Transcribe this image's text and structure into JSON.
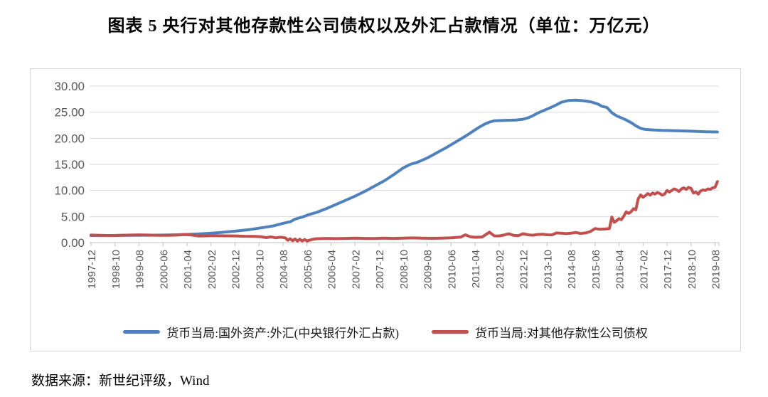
{
  "title": "图表 5  央行对其他存款性公司债权以及外汇占款情况（单位：万亿元）",
  "source": "数据来源：新世纪评级，Wind",
  "colors": {
    "blue_series": "#4f81bd",
    "red_series": "#c0504d",
    "grid": "#d9d9d9",
    "axis_line": "#bfbfbf",
    "axis_text": "#595959",
    "chart_border": "#d6d6d6"
  },
  "chart_data": {
    "type": "line",
    "title": "图表 5  央行对其他存款性公司债权以及外汇占款情况（单位：万亿元）",
    "unit": "万亿元",
    "ylim": [
      0,
      30
    ],
    "grid": "horizontal",
    "legend_position": "bottom",
    "y_tick_labels": [
      "30.00",
      "25.00",
      "20.00",
      "15.00",
      "10.00",
      "5.00",
      "0.00"
    ],
    "x_tick_labels": [
      "1997-12",
      "1998-10",
      "1999-08",
      "2000-06",
      "2001-04",
      "2002-02",
      "2002-12",
      "2003-10",
      "2004-08",
      "2005-06",
      "2006-04",
      "2007-02",
      "2007-12",
      "2008-10",
      "2009-08",
      "2010-06",
      "2011-04",
      "2012-02",
      "2012-12",
      "2013-10",
      "2014-08",
      "2015-06",
      "2016-04",
      "2017-02",
      "2017-12",
      "2018-10",
      "2019-08"
    ],
    "x_months_per_tick": 10,
    "x_month_range": [
      0,
      261
    ],
    "series": [
      {
        "name": "货币当局:国外资产:外汇(中央银行外汇占款)",
        "color": "#4f81bd",
        "points": [
          [
            0,
            1.35
          ],
          [
            6,
            1.35
          ],
          [
            12,
            1.38
          ],
          [
            18,
            1.4
          ],
          [
            24,
            1.42
          ],
          [
            30,
            1.45
          ],
          [
            36,
            1.5
          ],
          [
            42,
            1.6
          ],
          [
            48,
            1.75
          ],
          [
            54,
            1.95
          ],
          [
            60,
            2.2
          ],
          [
            66,
            2.5
          ],
          [
            72,
            2.9
          ],
          [
            76,
            3.2
          ],
          [
            80,
            3.7
          ],
          [
            83,
            4.0
          ],
          [
            85,
            4.5
          ],
          [
            88,
            4.9
          ],
          [
            91,
            5.4
          ],
          [
            94,
            5.8
          ],
          [
            98,
            6.5
          ],
          [
            102,
            7.3
          ],
          [
            106,
            8.1
          ],
          [
            110,
            8.9
          ],
          [
            114,
            9.8
          ],
          [
            118,
            10.8
          ],
          [
            122,
            11.8
          ],
          [
            126,
            13.0
          ],
          [
            130,
            14.3
          ],
          [
            133,
            15.0
          ],
          [
            136,
            15.4
          ],
          [
            140,
            16.2
          ],
          [
            144,
            17.2
          ],
          [
            148,
            18.2
          ],
          [
            152,
            19.3
          ],
          [
            156,
            20.4
          ],
          [
            160,
            21.6
          ],
          [
            162,
            22.2
          ],
          [
            164,
            22.7
          ],
          [
            166,
            23.1
          ],
          [
            168,
            23.35
          ],
          [
            171,
            23.4
          ],
          [
            174,
            23.45
          ],
          [
            177,
            23.5
          ],
          [
            180,
            23.65
          ],
          [
            182,
            23.9
          ],
          [
            184,
            24.3
          ],
          [
            186,
            24.8
          ],
          [
            188,
            25.2
          ],
          [
            190,
            25.6
          ],
          [
            193,
            26.2
          ],
          [
            196,
            26.9
          ],
          [
            199,
            27.25
          ],
          [
            202,
            27.3
          ],
          [
            205,
            27.2
          ],
          [
            208,
            27.0
          ],
          [
            211,
            26.6
          ],
          [
            213,
            26.1
          ],
          [
            215,
            25.9
          ],
          [
            217,
            24.9
          ],
          [
            219,
            24.3
          ],
          [
            221,
            23.9
          ],
          [
            223,
            23.5
          ],
          [
            225,
            23.0
          ],
          [
            227,
            22.4
          ],
          [
            229,
            21.9
          ],
          [
            231,
            21.7
          ],
          [
            234,
            21.6
          ],
          [
            238,
            21.5
          ],
          [
            244,
            21.45
          ],
          [
            250,
            21.35
          ],
          [
            256,
            21.25
          ],
          [
            261,
            21.2
          ]
        ]
      },
      {
        "name": "货币当局:对其他存款性公司债权",
        "color": "#c0504d",
        "points": [
          [
            0,
            1.44
          ],
          [
            4,
            1.4
          ],
          [
            8,
            1.35
          ],
          [
            12,
            1.4
          ],
          [
            16,
            1.45
          ],
          [
            20,
            1.48
          ],
          [
            24,
            1.45
          ],
          [
            28,
            1.4
          ],
          [
            32,
            1.4
          ],
          [
            36,
            1.45
          ],
          [
            39,
            1.55
          ],
          [
            42,
            1.45
          ],
          [
            45,
            1.25
          ],
          [
            48,
            1.3
          ],
          [
            52,
            1.32
          ],
          [
            56,
            1.3
          ],
          [
            60,
            1.28
          ],
          [
            64,
            1.22
          ],
          [
            68,
            1.18
          ],
          [
            71,
            1.12
          ],
          [
            73,
            0.95
          ],
          [
            75,
            1.1
          ],
          [
            77,
            0.92
          ],
          [
            79,
            1.05
          ],
          [
            81,
            0.9
          ],
          [
            82,
            0.45
          ],
          [
            83,
            0.75
          ],
          [
            84,
            0.35
          ],
          [
            85,
            0.7
          ],
          [
            86,
            0.3
          ],
          [
            87,
            0.65
          ],
          [
            88,
            0.32
          ],
          [
            89,
            0.6
          ],
          [
            90,
            0.32
          ],
          [
            92,
            0.6
          ],
          [
            94,
            0.75
          ],
          [
            98,
            0.8
          ],
          [
            102,
            0.76
          ],
          [
            106,
            0.8
          ],
          [
            110,
            0.85
          ],
          [
            114,
            0.8
          ],
          [
            118,
            0.78
          ],
          [
            122,
            0.84
          ],
          [
            126,
            0.8
          ],
          [
            130,
            0.85
          ],
          [
            134,
            0.9
          ],
          [
            138,
            0.86
          ],
          [
            142,
            0.82
          ],
          [
            146,
            0.86
          ],
          [
            150,
            0.92
          ],
          [
            154,
            1.05
          ],
          [
            156,
            1.5
          ],
          [
            158,
            1.12
          ],
          [
            160,
            1.02
          ],
          [
            163,
            1.08
          ],
          [
            166,
            2.0
          ],
          [
            168,
            1.3
          ],
          [
            170,
            1.28
          ],
          [
            172,
            1.45
          ],
          [
            174,
            1.7
          ],
          [
            176,
            1.4
          ],
          [
            178,
            1.32
          ],
          [
            180,
            1.7
          ],
          [
            182,
            1.5
          ],
          [
            184,
            1.42
          ],
          [
            186,
            1.55
          ],
          [
            188,
            1.6
          ],
          [
            190,
            1.5
          ],
          [
            192,
            1.48
          ],
          [
            194,
            1.85
          ],
          [
            196,
            1.78
          ],
          [
            198,
            1.72
          ],
          [
            200,
            1.8
          ],
          [
            202,
            1.95
          ],
          [
            204,
            1.75
          ],
          [
            206,
            1.85
          ],
          [
            208,
            2.1
          ],
          [
            210,
            2.7
          ],
          [
            212,
            2.55
          ],
          [
            214,
            2.6
          ],
          [
            216,
            2.7
          ],
          [
            217,
            4.9
          ],
          [
            218,
            3.9
          ],
          [
            219,
            4.2
          ],
          [
            220,
            4.6
          ],
          [
            221,
            4.4
          ],
          [
            222,
            5.1
          ],
          [
            223,
            5.9
          ],
          [
            224,
            5.6
          ],
          [
            225,
            5.9
          ],
          [
            226,
            6.5
          ],
          [
            227,
            6.3
          ],
          [
            228,
            8.4
          ],
          [
            229,
            9.15
          ],
          [
            230,
            8.7
          ],
          [
            231,
            9.0
          ],
          [
            232,
            9.4
          ],
          [
            233,
            9.1
          ],
          [
            234,
            9.5
          ],
          [
            235,
            9.3
          ],
          [
            236,
            9.6
          ],
          [
            237,
            9.4
          ],
          [
            238,
            9.1
          ],
          [
            239,
            9.3
          ],
          [
            240,
            10.0
          ],
          [
            241,
            9.7
          ],
          [
            242,
            10.0
          ],
          [
            243,
            10.3
          ],
          [
            244,
            10.1
          ],
          [
            245,
            9.8
          ],
          [
            246,
            10.3
          ],
          [
            247,
            10.5
          ],
          [
            248,
            10.2
          ],
          [
            249,
            10.6
          ],
          [
            250,
            10.4
          ],
          [
            251,
            9.5
          ],
          [
            252,
            9.7
          ],
          [
            253,
            9.3
          ],
          [
            254,
            9.9
          ],
          [
            255,
            10.1
          ],
          [
            256,
            10.0
          ],
          [
            257,
            10.3
          ],
          [
            258,
            10.2
          ],
          [
            259,
            10.5
          ],
          [
            260,
            10.6
          ],
          [
            261,
            11.7
          ]
        ]
      }
    ]
  }
}
